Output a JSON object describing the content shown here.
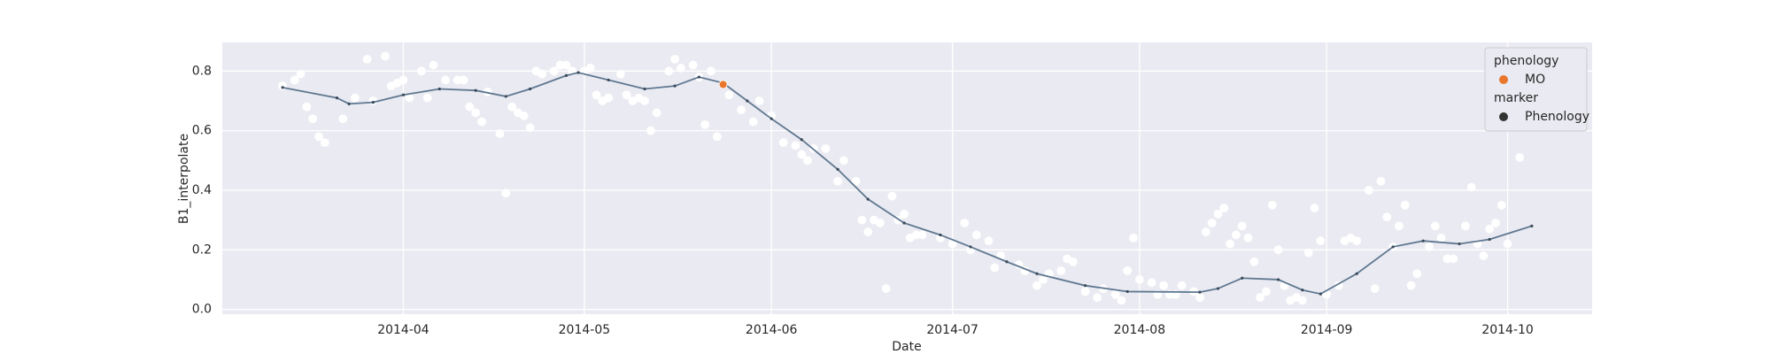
{
  "chart_data": {
    "type": "scatter",
    "x_label": "Date",
    "y_label": "B1_interpolate",
    "xlim": [
      61,
      288
    ],
    "xticks": [
      {
        "value": 91,
        "label": "2014-04"
      },
      {
        "value": 121,
        "label": "2014-05"
      },
      {
        "value": 152,
        "label": "2014-06"
      },
      {
        "value": 182,
        "label": "2014-07"
      },
      {
        "value": 213,
        "label": "2014-08"
      },
      {
        "value": 244,
        "label": "2014-09"
      },
      {
        "value": 274,
        "label": "2014-10"
      }
    ],
    "ylim": [
      -0.016,
      0.896
    ],
    "yticks": [
      {
        "value": 0,
        "label": "0.0"
      },
      0.2,
      0.4,
      0.6,
      0.8
    ],
    "grid": true,
    "series": [
      {
        "type": "scatter",
        "color": "#ffffff",
        "x": [
          71,
          73,
          74,
          75,
          76,
          77,
          78,
          81,
          83,
          85,
          86,
          88,
          89,
          90,
          91,
          92,
          94,
          95,
          96,
          98,
          100,
          101,
          102,
          103,
          104,
          105,
          107,
          108,
          109,
          110,
          111,
          112,
          113,
          114,
          116,
          117,
          118,
          119,
          121,
          122,
          123,
          124,
          125,
          127,
          128,
          129,
          130,
          131,
          132,
          133,
          135,
          136,
          137,
          139,
          140,
          141,
          142,
          143,
          145,
          147,
          149,
          150,
          152,
          154,
          156,
          157,
          158,
          159,
          161,
          163,
          164,
          166,
          167,
          168,
          169,
          170,
          171,
          172,
          173,
          174,
          175,
          176,
          177,
          180,
          182,
          184,
          185,
          186,
          188,
          189,
          190,
          193,
          194,
          196,
          197,
          198,
          200,
          201,
          202,
          204,
          206,
          207,
          209,
          210,
          211,
          212,
          213,
          215,
          216,
          217,
          218,
          219,
          220,
          222,
          223,
          224,
          225,
          226,
          227,
          228,
          229,
          230,
          231,
          232,
          233,
          234,
          235,
          236,
          237,
          238,
          239,
          240,
          241,
          242,
          243,
          244,
          246,
          247,
          248,
          249,
          251,
          252,
          253,
          254,
          255,
          256,
          257,
          258,
          259,
          261,
          262,
          263,
          264,
          265,
          267,
          268,
          269,
          270,
          271,
          272,
          273,
          274,
          276
        ],
        "values": [
          0.75,
          0.77,
          0.79,
          0.68,
          0.64,
          0.58,
          0.56,
          0.64,
          0.71,
          0.84,
          0.7,
          0.85,
          0.75,
          0.76,
          0.77,
          0.71,
          0.8,
          0.71,
          0.82,
          0.77,
          0.77,
          0.77,
          0.68,
          0.66,
          0.63,
          0.73,
          0.59,
          0.39,
          0.68,
          0.66,
          0.65,
          0.61,
          0.8,
          0.79,
          0.8,
          0.82,
          0.82,
          0.8,
          0.8,
          0.81,
          0.72,
          0.7,
          0.71,
          0.79,
          0.72,
          0.7,
          0.71,
          0.7,
          0.6,
          0.66,
          0.8,
          0.84,
          0.81,
          0.82,
          0.78,
          0.62,
          0.8,
          0.58,
          0.72,
          0.67,
          0.63,
          0.7,
          0.65,
          0.56,
          0.55,
          0.52,
          0.5,
          0.54,
          0.54,
          0.43,
          0.5,
          0.43,
          0.3,
          0.26,
          0.3,
          0.29,
          0.07,
          0.38,
          0.3,
          0.32,
          0.24,
          0.25,
          0.25,
          0.24,
          0.22,
          0.29,
          0.2,
          0.25,
          0.23,
          0.14,
          0.18,
          0.15,
          0.13,
          0.08,
          0.1,
          0.12,
          0.13,
          0.17,
          0.16,
          0.06,
          0.04,
          0.07,
          0.05,
          0.03,
          0.13,
          0.24,
          0.1,
          0.09,
          0.05,
          0.08,
          0.05,
          0.05,
          0.08,
          0.06,
          0.04,
          0.26,
          0.29,
          0.32,
          0.34,
          0.22,
          0.25,
          0.28,
          0.24,
          0.16,
          0.04,
          0.06,
          0.35,
          0.2,
          0.08,
          0.03,
          0.04,
          0.03,
          0.19,
          0.34,
          0.23,
          0.05,
          0.08,
          0.23,
          0.24,
          0.23,
          0.4,
          0.07,
          0.43,
          0.31,
          0.21,
          0.28,
          0.35,
          0.08,
          0.12,
          0.21,
          0.28,
          0.24,
          0.17,
          0.17,
          0.28,
          0.41,
          0.22,
          0.18,
          0.27,
          0.29,
          0.35,
          0.22,
          0.51
        ]
      },
      {
        "type": "line",
        "color": "#5f7890",
        "x": [
          71,
          80,
          82,
          86,
          91,
          97,
          103,
          108,
          112,
          118,
          120,
          125,
          131,
          136,
          140,
          144,
          148,
          152,
          157,
          163,
          168,
          174,
          180,
          185,
          191,
          196,
          204,
          211,
          223,
          226,
          230,
          236,
          240,
          243,
          249,
          255,
          260,
          266,
          271,
          278
        ],
        "values": [
          0.745,
          0.71,
          0.69,
          0.695,
          0.72,
          0.74,
          0.735,
          0.715,
          0.74,
          0.785,
          0.795,
          0.77,
          0.74,
          0.75,
          0.78,
          0.76,
          0.7,
          0.64,
          0.57,
          0.47,
          0.37,
          0.29,
          0.25,
          0.21,
          0.16,
          0.12,
          0.08,
          0.06,
          0.058,
          0.07,
          0.105,
          0.1,
          0.065,
          0.052,
          0.12,
          0.21,
          0.23,
          0.22,
          0.235,
          0.28
        ]
      },
      {
        "type": "scatter",
        "color": "#e8762b",
        "x": [
          144
        ],
        "values": [
          0.755
        ]
      }
    ],
    "legend": {
      "loc": "upper right",
      "sections": [
        {
          "title": "phenology",
          "entries": [
            {
              "label": "MO",
              "color": "#e8762b"
            }
          ]
        },
        {
          "title": "marker",
          "entries": [
            {
              "label": "Phenology",
              "color": "#333333"
            }
          ]
        }
      ]
    }
  }
}
